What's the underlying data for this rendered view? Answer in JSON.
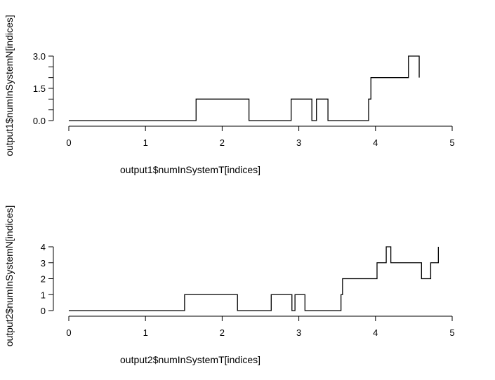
{
  "chart_data": [
    {
      "type": "line",
      "step": true,
      "xlabel": "output1$numInSystemT[indices]",
      "ylabel": "output1$numInSystemN[indices]",
      "xlim": [
        0,
        5
      ],
      "ylim": [
        0,
        3
      ],
      "x_ticks": [
        0,
        1,
        2,
        3,
        4,
        5
      ],
      "y_ticks": [
        0,
        0.5,
        1,
        1.5,
        2,
        2.5,
        3
      ],
      "y_tick_labels": [
        "0.0",
        "",
        "",
        "1.5",
        "",
        "",
        "3.0"
      ],
      "grid": false,
      "series": [
        {
          "x": [
            0,
            1.66,
            2.35,
            2.9,
            3.17,
            3.23,
            3.38,
            3.91,
            3.94,
            4.43,
            4.57
          ],
          "y": [
            0,
            1,
            0,
            1,
            0,
            1,
            0,
            1,
            2,
            3,
            2
          ]
        }
      ]
    },
    {
      "type": "line",
      "step": true,
      "xlabel": "output2$numInSystemT[indices]",
      "ylabel": "output2$numInSystemN[indices]",
      "xlim": [
        0,
        5
      ],
      "ylim": [
        0,
        4
      ],
      "x_ticks": [
        0,
        1,
        2,
        3,
        4,
        5
      ],
      "y_ticks": [
        0,
        1,
        2,
        3,
        4
      ],
      "y_tick_labels": [
        "0",
        "1",
        "2",
        "3",
        "4"
      ],
      "grid": false,
      "series": [
        {
          "x": [
            0,
            1.51,
            2.2,
            2.64,
            2.91,
            2.95,
            3.08,
            3.55,
            3.57,
            4.02,
            4.14,
            4.2,
            4.6,
            4.72,
            4.82
          ],
          "y": [
            0,
            1,
            0,
            1,
            0,
            1,
            0,
            1,
            2,
            3,
            4,
            3,
            2,
            3,
            4
          ]
        }
      ]
    }
  ]
}
